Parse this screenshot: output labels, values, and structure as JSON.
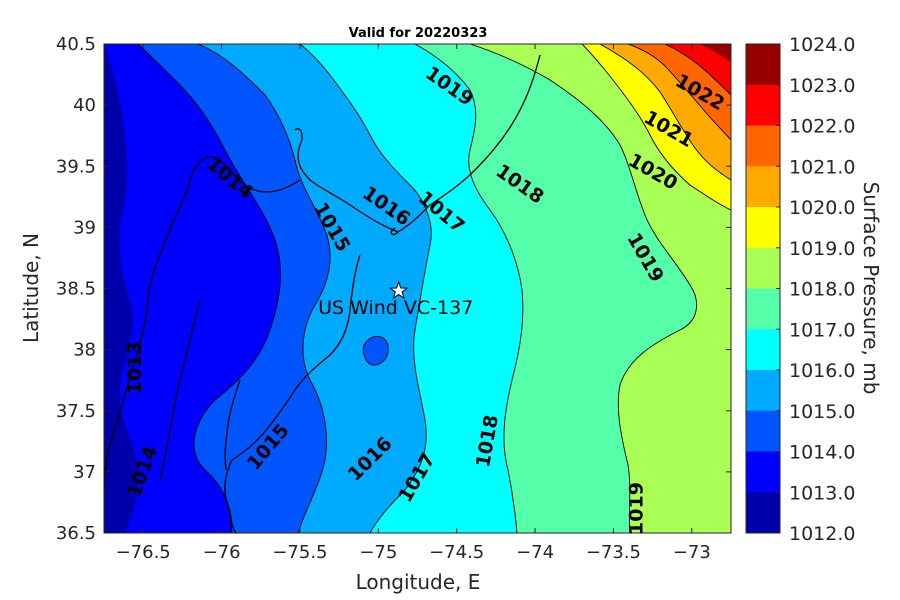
{
  "title": "Valid for 20220323",
  "xlabel": "Longitude, E",
  "ylabel": "Latitude, N",
  "x_ticks": [
    "−76.5",
    "−76",
    "−75.5",
    "−75",
    "−74.5",
    "−74",
    "−73.5",
    "−73"
  ],
  "y_ticks": [
    "40.5",
    "40",
    "39.5",
    "39",
    "38.5",
    "38",
    "37.5",
    "37",
    "36.5"
  ],
  "colorbar": {
    "label": "Surface Pressure, mb",
    "ticks": [
      "1024.0",
      "1023.0",
      "1022.0",
      "1021.0",
      "1020.0",
      "1019.0",
      "1018.0",
      "1017.0",
      "1016.0",
      "1015.0",
      "1014.0",
      "1013.0",
      "1012.0"
    ],
    "colors": [
      "#990000",
      "#ff0000",
      "#ff6600",
      "#ffaa00",
      "#ffff00",
      "#aaff55",
      "#55ffaa",
      "#00ffff",
      "#00aaff",
      "#0055ff",
      "#0000ff",
      "#0000aa"
    ]
  },
  "site": {
    "label": "US Wind VC-137",
    "lon": -74.87,
    "lat": 38.48,
    "marker": "star-icon"
  },
  "contour_labels": [
    {
      "text": "1019",
      "lon": -74.55,
      "lat": 40.15,
      "angle": 35
    },
    {
      "text": "1022",
      "lon": -72.95,
      "lat": 40.1,
      "angle": 30
    },
    {
      "text": "1021",
      "lon": -73.15,
      "lat": 39.8,
      "angle": 30
    },
    {
      "text": "1020",
      "lon": -73.25,
      "lat": 39.45,
      "angle": 30
    },
    {
      "text": "1018",
      "lon": -74.1,
      "lat": 39.35,
      "angle": 35
    },
    {
      "text": "1017",
      "lon": -74.6,
      "lat": 39.12,
      "angle": 40
    },
    {
      "text": "1016",
      "lon": -74.95,
      "lat": 39.17,
      "angle": 35
    },
    {
      "text": "1015",
      "lon": -75.3,
      "lat": 39.0,
      "angle": 60
    },
    {
      "text": "1014",
      "lon": -75.95,
      "lat": 39.4,
      "angle": 40
    },
    {
      "text": "1019",
      "lon": -73.3,
      "lat": 38.75,
      "angle": 60
    },
    {
      "text": "1013",
      "lon": -76.55,
      "lat": 37.85,
      "angle": -90
    },
    {
      "text": "1015",
      "lon": -75.7,
      "lat": 37.2,
      "angle": -50
    },
    {
      "text": "1016",
      "lon": -75.05,
      "lat": 37.1,
      "angle": -45
    },
    {
      "text": "1017",
      "lon": -74.75,
      "lat": 36.95,
      "angle": -60
    },
    {
      "text": "1018",
      "lon": -74.3,
      "lat": 37.25,
      "angle": -80
    },
    {
      "text": "1014",
      "lon": -76.5,
      "lat": 37.0,
      "angle": -70
    },
    {
      "text": "1019",
      "lon": -73.35,
      "lat": 36.7,
      "angle": -90
    }
  ],
  "chart_data": {
    "type": "heatmap",
    "title": "Valid for 20220323",
    "xlabel": "Longitude, E",
    "ylabel": "Latitude, N",
    "xlim": [
      -76.75,
      -72.75
    ],
    "ylim": [
      36.5,
      40.5
    ],
    "colorbar_label": "Surface Pressure, mb",
    "color_levels": [
      1012,
      1013,
      1014,
      1015,
      1016,
      1017,
      1018,
      1019,
      1020,
      1021,
      1022,
      1023,
      1024
    ],
    "grid": false
  }
}
